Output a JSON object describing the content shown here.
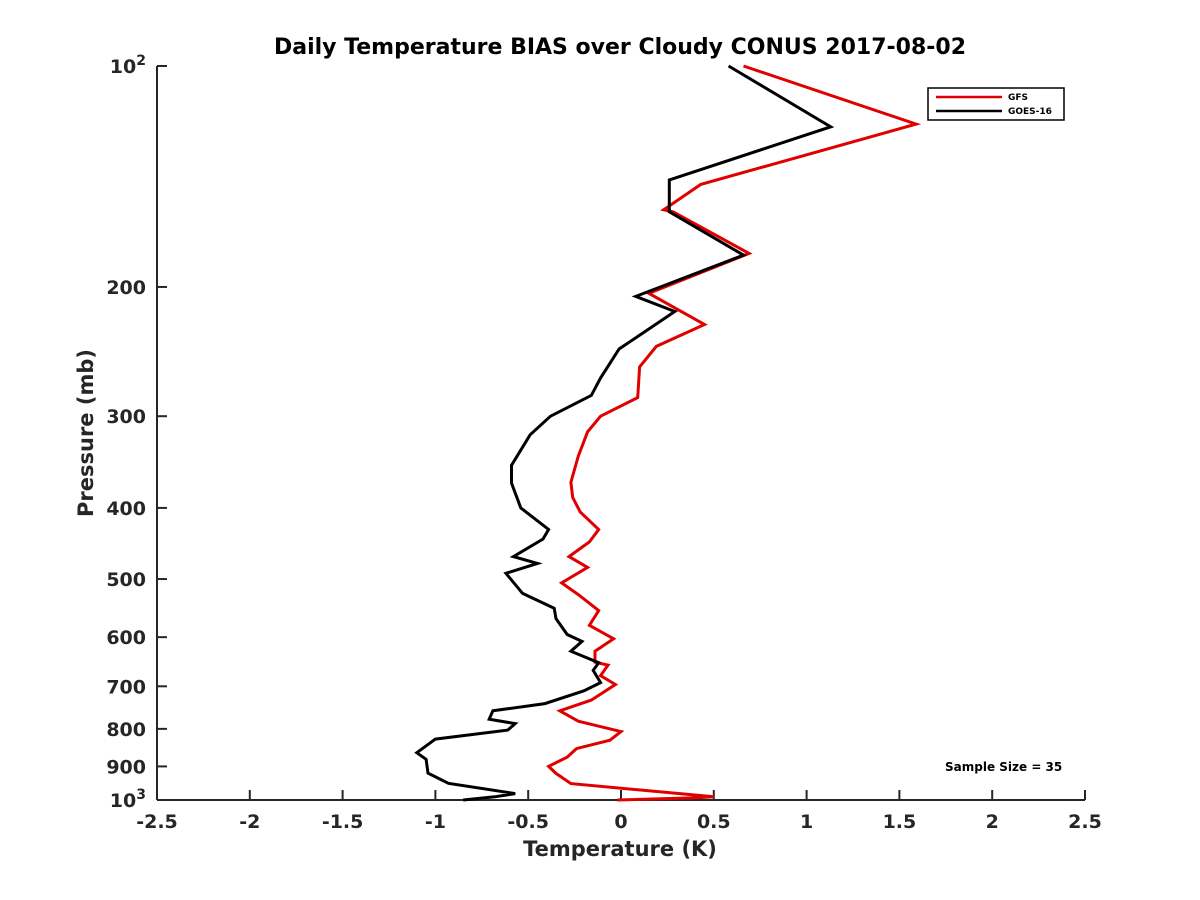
{
  "chart_data": {
    "type": "line",
    "title": "Daily Temperature BIAS over Cloudy CONUS 2017-08-02",
    "xlabel": "Temperature (K)",
    "ylabel": "Pressure (mb)",
    "xlim": [
      -2.5,
      2.5
    ],
    "ylim": [
      100,
      1000
    ],
    "yscale": "log",
    "y_reversed": true,
    "xticks": [
      "-2.5",
      "-2",
      "-1.5",
      "-1",
      "-0.5",
      "0",
      "0.5",
      "1",
      "1.5",
      "2",
      "2.5"
    ],
    "xtick_values": [
      -2.5,
      -2,
      -1.5,
      -1,
      -0.5,
      0,
      0.5,
      1,
      1.5,
      2,
      2.5
    ],
    "ytick_values": [
      100,
      200,
      300,
      400,
      500,
      600,
      700,
      800,
      900,
      1000
    ],
    "yticks": [
      {
        "value": 100,
        "base": "10",
        "exp": "2"
      },
      {
        "value": 200,
        "text": "200"
      },
      {
        "value": 300,
        "text": "300"
      },
      {
        "value": 400,
        "text": "400"
      },
      {
        "value": 500,
        "text": "500"
      },
      {
        "value": 600,
        "text": "600"
      },
      {
        "value": 700,
        "text": "700"
      },
      {
        "value": 800,
        "text": "800"
      },
      {
        "value": 900,
        "text": "900"
      },
      {
        "value": 1000,
        "base": "10",
        "exp": "3"
      }
    ],
    "legend_position": "top-right",
    "series": [
      {
        "name": "GFS",
        "color": "#e00000",
        "points": [
          [
            0.66,
            100
          ],
          [
            1.59,
            120
          ],
          [
            0.43,
            145
          ],
          [
            0.23,
            157
          ],
          [
            0.28,
            158
          ],
          [
            0.69,
            180
          ],
          [
            0.15,
            204
          ],
          [
            0.45,
            225
          ],
          [
            0.19,
            241
          ],
          [
            0.1,
            257
          ],
          [
            0.09,
            283
          ],
          [
            -0.11,
            300
          ],
          [
            -0.18,
            315
          ],
          [
            -0.23,
            340
          ],
          [
            -0.27,
            369
          ],
          [
            -0.26,
            387
          ],
          [
            -0.22,
            405
          ],
          [
            -0.12,
            428
          ],
          [
            -0.17,
            445
          ],
          [
            -0.28,
            466
          ],
          [
            -0.18,
            482
          ],
          [
            -0.32,
            506
          ],
          [
            -0.23,
            525
          ],
          [
            -0.12,
            552
          ],
          [
            -0.17,
            578
          ],
          [
            -0.04,
            603
          ],
          [
            -0.14,
            627
          ],
          [
            -0.14,
            649
          ],
          [
            -0.07,
            655
          ],
          [
            -0.11,
            677
          ],
          [
            -0.03,
            696
          ],
          [
            -0.16,
            731
          ],
          [
            -0.33,
            756
          ],
          [
            -0.23,
            781
          ],
          [
            0.0,
            807
          ],
          [
            -0.06,
            829
          ],
          [
            -0.24,
            851
          ],
          [
            -0.29,
            874
          ],
          [
            -0.39,
            900
          ],
          [
            -0.35,
            920
          ],
          [
            -0.27,
            950
          ],
          [
            0.5,
            990
          ],
          [
            0.41,
            993
          ],
          [
            -0.02,
            1000
          ]
        ]
      },
      {
        "name": "GOES-16",
        "color": "#000000",
        "points": [
          [
            0.58,
            100
          ],
          [
            1.13,
            121
          ],
          [
            0.26,
            143
          ],
          [
            0.26,
            158
          ],
          [
            0.66,
            181
          ],
          [
            0.08,
            206
          ],
          [
            0.29,
            216
          ],
          [
            -0.01,
            243
          ],
          [
            -0.11,
            266
          ],
          [
            -0.16,
            281
          ],
          [
            -0.38,
            300
          ],
          [
            -0.49,
            318
          ],
          [
            -0.59,
            350
          ],
          [
            -0.59,
            370
          ],
          [
            -0.54,
            400
          ],
          [
            -0.39,
            428
          ],
          [
            -0.42,
            441
          ],
          [
            -0.58,
            466
          ],
          [
            -0.45,
            476
          ],
          [
            -0.62,
            491
          ],
          [
            -0.53,
            523
          ],
          [
            -0.36,
            548
          ],
          [
            -0.35,
            566
          ],
          [
            -0.29,
            595
          ],
          [
            -0.21,
            608
          ],
          [
            -0.27,
            627
          ],
          [
            -0.12,
            650
          ],
          [
            -0.15,
            666
          ],
          [
            -0.11,
            692
          ],
          [
            -0.2,
            710
          ],
          [
            -0.41,
            739
          ],
          [
            -0.69,
            756
          ],
          [
            -0.71,
            776
          ],
          [
            -0.57,
            787
          ],
          [
            -0.61,
            803
          ],
          [
            -1.0,
            826
          ],
          [
            -1.1,
            862
          ],
          [
            -1.05,
            880
          ],
          [
            -1.04,
            919
          ],
          [
            -0.93,
            949
          ],
          [
            -0.57,
            980
          ],
          [
            -0.68,
            990
          ],
          [
            -0.85,
            1000
          ]
        ]
      }
    ],
    "annotation": "Sample Size = 35"
  }
}
